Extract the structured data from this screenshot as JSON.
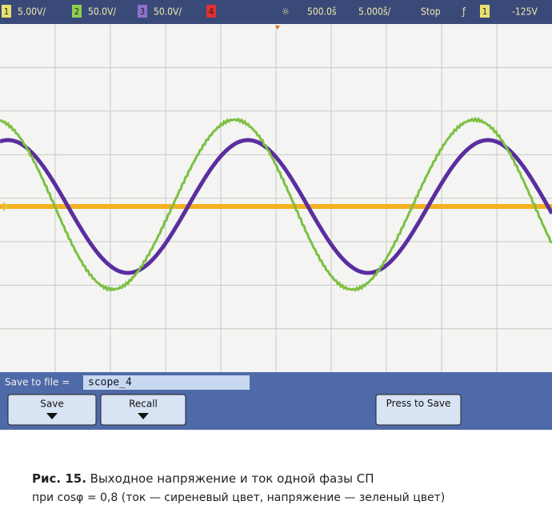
{
  "status_bar": {
    "channels": [
      {
        "number": "1",
        "scale": "5.00V/"
      },
      {
        "number": "2",
        "scale": "50.0V/"
      },
      {
        "number": "3",
        "scale": "50.0V/"
      },
      {
        "number": "4",
        "scale": ""
      }
    ],
    "delay": "500.0š",
    "timebase": "5.000š/",
    "run_state": "Stop",
    "trigger_channel": "1",
    "trigger_level": "-125V"
  },
  "save_bar": {
    "label": "Save to file =",
    "filename": "scope_4"
  },
  "softkeys": [
    {
      "label": "Save"
    },
    {
      "label": "Recall"
    },
    {
      "label": "Press to Save"
    }
  ],
  "caption": {
    "number": "Рис. 15.",
    "line1": "Выходное напряжение и ток одной фазы СП",
    "line2": "при cosφ = 0,8 (ток — сиреневый цвет, напряжение — зеленый цвет)"
  }
}
